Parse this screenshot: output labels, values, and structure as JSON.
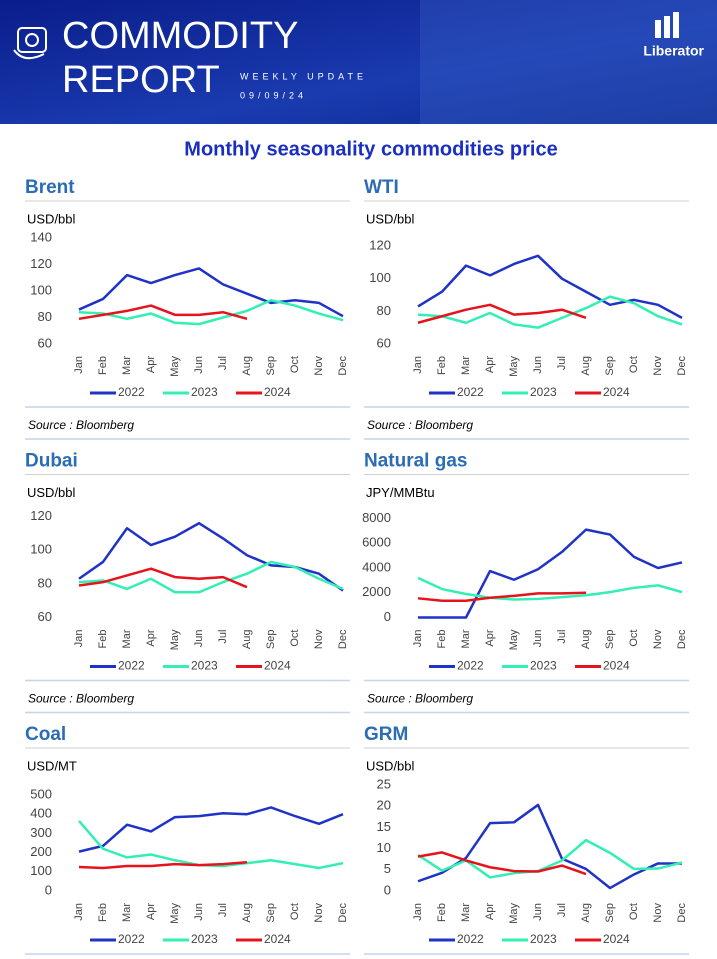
{
  "header": {
    "title_line1": "COMMODITY",
    "title_line2": "REPORT",
    "subtitle": "WEEKLY UPDATE",
    "date": "09/09/24",
    "brand": "Liberator"
  },
  "heading": "Monthly seasonality commodities price",
  "chart_data": [
    {
      "type": "line",
      "title": "Brent",
      "y_label": "USD/bbl",
      "source": "Source : Bloomberg",
      "categories": [
        "Jan",
        "Feb",
        "Mar",
        "Apr",
        "May",
        "Jun",
        "Jul",
        "Aug",
        "Sep",
        "Oct",
        "Nov",
        "Dec"
      ],
      "ylim": [
        60,
        140
      ],
      "yticks": [
        60,
        80,
        100,
        120,
        140
      ],
      "series": [
        {
          "name": "2022",
          "color": "#1f33c6",
          "values": [
            86,
            94,
            112,
            106,
            112,
            117,
            105,
            98,
            91,
            93,
            91,
            81
          ]
        },
        {
          "name": "2023",
          "color": "#33efb4",
          "values": [
            84,
            83,
            79,
            83,
            76,
            75,
            80,
            85,
            93,
            89,
            83,
            78
          ]
        },
        {
          "name": "2024",
          "color": "#e5141c",
          "values": [
            79,
            82,
            85,
            89,
            82,
            82,
            84,
            79,
            null,
            null,
            null,
            null
          ]
        }
      ]
    },
    {
      "type": "line",
      "title": "WTI",
      "y_label": "USD/bbl",
      "source": "Source : Bloomberg",
      "categories": [
        "Jan",
        "Feb",
        "Mar",
        "Apr",
        "May",
        "Jun",
        "Jul",
        "Aug",
        "Sep",
        "Oct",
        "Nov",
        "Dec"
      ],
      "ylim": [
        60,
        120
      ],
      "yticks": [
        60,
        80,
        100,
        120
      ],
      "series": [
        {
          "name": "2022",
          "color": "#1f33c6",
          "values": [
            83,
            92,
            108,
            102,
            109,
            114,
            100,
            92,
            84,
            87,
            84,
            76
          ]
        },
        {
          "name": "2023",
          "color": "#33efb4",
          "values": [
            78,
            77,
            73,
            79,
            72,
            70,
            76,
            82,
            89,
            85,
            77,
            72
          ]
        },
        {
          "name": "2024",
          "color": "#e5141c",
          "values": [
            73,
            77,
            81,
            84,
            78,
            79,
            81,
            76,
            null,
            null,
            null,
            null
          ]
        }
      ]
    },
    {
      "type": "line",
      "title": "Dubai",
      "y_label": "USD/bbl",
      "source": "Source : Bloomberg",
      "categories": [
        "Jan",
        "Feb",
        "Mar",
        "Apr",
        "May",
        "Jun",
        "Jul",
        "Aug",
        "Sep",
        "Oct",
        "Nov",
        "Dec"
      ],
      "ylim": [
        60,
        120
      ],
      "yticks": [
        60,
        80,
        100,
        120
      ],
      "series": [
        {
          "name": "2022",
          "color": "#1f33c6",
          "values": [
            83,
            93,
            113,
            103,
            108,
            116,
            107,
            97,
            91,
            90,
            86,
            76
          ]
        },
        {
          "name": "2023",
          "color": "#33efb4",
          "values": [
            81,
            82,
            77,
            83,
            75,
            75,
            81,
            86,
            93,
            90,
            83,
            77
          ]
        },
        {
          "name": "2024",
          "color": "#e5141c",
          "values": [
            79,
            81,
            85,
            89,
            84,
            83,
            84,
            78,
            null,
            null,
            null,
            null
          ]
        }
      ]
    },
    {
      "type": "line",
      "title": "Natural gas",
      "y_label": "JPY/MMBtu",
      "source": "Source : Bloomberg",
      "categories": [
        "Jan",
        "Feb",
        "Mar",
        "Apr",
        "May",
        "Jun",
        "Jul",
        "Aug",
        "Sep",
        "Oct",
        "Nov",
        "Dec"
      ],
      "ylim": [
        0,
        8000
      ],
      "yticks": [
        0,
        2000,
        4000,
        6000,
        8000
      ],
      "series": [
        {
          "name": "2022",
          "color": "#1f33c6",
          "values": [
            0,
            0,
            0,
            3750,
            3050,
            3900,
            5300,
            7100,
            6700,
            4900,
            4000,
            4450
          ]
        },
        {
          "name": "2023",
          "color": "#33efb4",
          "values": [
            3200,
            2300,
            1900,
            1600,
            1450,
            1500,
            1650,
            1800,
            2050,
            2400,
            2600,
            2050
          ]
        },
        {
          "name": "2024",
          "color": "#e5141c",
          "values": [
            1550,
            1350,
            1350,
            1600,
            1750,
            1950,
            1950,
            2000,
            null,
            null,
            null,
            null
          ]
        }
      ]
    },
    {
      "type": "line",
      "title": "Coal",
      "y_label": "USD/MT",
      "source": null,
      "categories": [
        "Jan",
        "Feb",
        "Mar",
        "Apr",
        "May",
        "Jun",
        "Jul",
        "Aug",
        "Sep",
        "Oct",
        "Nov",
        "Dec"
      ],
      "ylim": [
        0,
        500
      ],
      "yticks": [
        0,
        100,
        200,
        300,
        400,
        500
      ],
      "series": [
        {
          "name": "2022",
          "color": "#1f33c6",
          "values": [
            205,
            235,
            345,
            310,
            385,
            390,
            405,
            400,
            435,
            390,
            350,
            400
          ]
        },
        {
          "name": "2023",
          "color": "#33efb4",
          "values": [
            365,
            220,
            175,
            190,
            160,
            135,
            130,
            145,
            160,
            140,
            120,
            145
          ]
        },
        {
          "name": "2024",
          "color": "#e5141c",
          "values": [
            125,
            120,
            130,
            130,
            140,
            135,
            140,
            150,
            null,
            null,
            null,
            null
          ]
        }
      ]
    },
    {
      "type": "line",
      "title": "GRM",
      "y_label": "USD/bbl",
      "source": null,
      "categories": [
        "Jan",
        "Feb",
        "Mar",
        "Apr",
        "May",
        "Jun",
        "Jul",
        "Aug",
        "Sep",
        "Oct",
        "Nov",
        "Dec"
      ],
      "ylim": [
        0,
        25
      ],
      "yticks": [
        0,
        5,
        10,
        15,
        20,
        25
      ],
      "series": [
        {
          "name": "2022",
          "color": "#1f33c6",
          "values": [
            2.3,
            4.3,
            7.8,
            16,
            16.2,
            20.3,
            7.6,
            5.2,
            0.7,
            3.9,
            6.5,
            6.5
          ]
        },
        {
          "name": "2023",
          "color": "#33efb4",
          "values": [
            8.5,
            4.8,
            7.2,
            3.2,
            4.2,
            4.7,
            7.2,
            12,
            9,
            5.2,
            5.3,
            6.7
          ]
        },
        {
          "name": "2024",
          "color": "#e5141c",
          "values": [
            8.1,
            9.1,
            7.2,
            5.6,
            4.7,
            4.6,
            6.0,
            4.0,
            null,
            null,
            null,
            null
          ]
        }
      ]
    }
  ]
}
